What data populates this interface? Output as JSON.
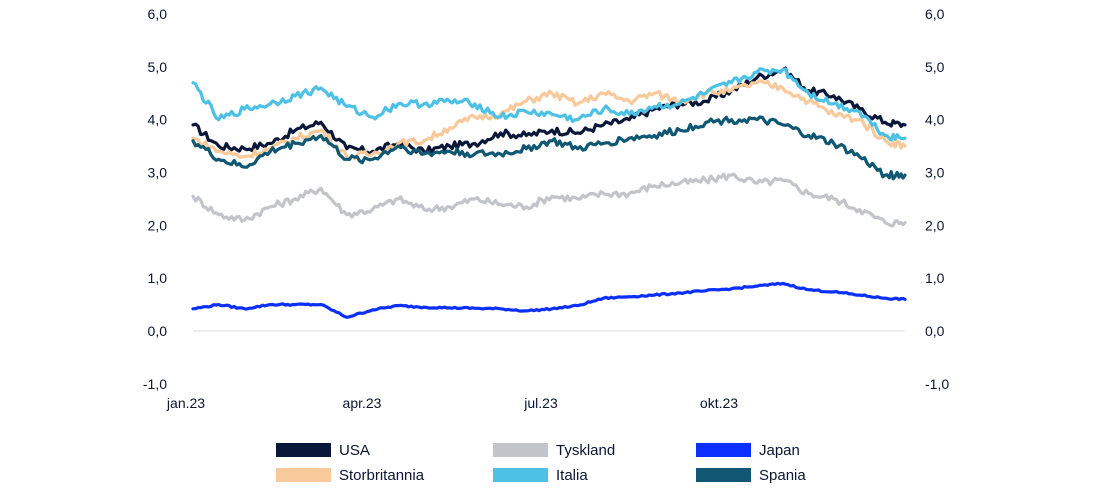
{
  "chart_data": {
    "type": "line",
    "title": "",
    "xlabel": "",
    "ylabel": "",
    "ylim": [
      -1.0,
      6.0
    ],
    "yticks": [
      "6,0",
      "5,0",
      "4,0",
      "3,0",
      "2,0",
      "1,0",
      "0,0",
      "-1,0"
    ],
    "ytick_values": [
      6,
      5,
      4,
      3,
      2,
      1,
      0,
      -1
    ],
    "xtick_labels": [
      "jan.23",
      "apr.23",
      "jul.23",
      "okt.23"
    ],
    "xtick_positions": [
      -0.07,
      3.0,
      6.0,
      9.0
    ],
    "x": [
      0.0,
      0.43,
      0.86,
      1.29,
      1.71,
      2.14,
      2.57,
      3.0,
      3.43,
      3.86,
      4.29,
      4.71,
      5.14,
      5.57,
      6.0,
      6.43,
      6.86,
      7.29,
      7.71,
      8.14,
      8.57,
      9.0,
      9.43,
      9.86,
      10.29,
      10.71,
      11.14,
      11.57,
      11.9
    ],
    "grid": false,
    "legend_position": "bottom",
    "series": [
      {
        "name": "USA",
        "color": "#0a1738",
        "values": [
          3.9,
          3.5,
          3.45,
          3.55,
          3.8,
          3.95,
          3.45,
          3.4,
          3.55,
          3.4,
          3.5,
          3.55,
          3.75,
          3.7,
          3.8,
          3.75,
          3.9,
          4.0,
          4.2,
          4.3,
          4.35,
          4.55,
          4.8,
          4.95,
          4.55,
          4.45,
          4.2,
          3.95,
          3.9
        ]
      },
      {
        "name": "Tyskland",
        "color": "#c2c4c9",
        "values": [
          2.55,
          2.2,
          2.1,
          2.35,
          2.5,
          2.7,
          2.2,
          2.3,
          2.5,
          2.3,
          2.35,
          2.5,
          2.4,
          2.35,
          2.55,
          2.5,
          2.6,
          2.6,
          2.75,
          2.8,
          2.85,
          2.95,
          2.8,
          2.85,
          2.6,
          2.5,
          2.3,
          2.05,
          2.05
        ]
      },
      {
        "name": "Japan",
        "color": "#0a2fff",
        "values": [
          0.42,
          0.5,
          0.42,
          0.5,
          0.5,
          0.5,
          0.26,
          0.4,
          0.48,
          0.45,
          0.44,
          0.43,
          0.42,
          0.38,
          0.42,
          0.48,
          0.62,
          0.65,
          0.68,
          0.72,
          0.76,
          0.8,
          0.85,
          0.9,
          0.78,
          0.74,
          0.68,
          0.62,
          0.6
        ]
      },
      {
        "name": "Storbritannia",
        "color": "#f8c99a",
        "values": [
          3.65,
          3.4,
          3.3,
          3.45,
          3.65,
          3.8,
          3.3,
          3.35,
          3.55,
          3.6,
          3.85,
          4.05,
          4.1,
          4.35,
          4.5,
          4.3,
          4.5,
          4.35,
          4.5,
          4.35,
          4.5,
          4.55,
          4.7,
          4.6,
          4.35,
          4.1,
          4.0,
          3.6,
          3.5
        ]
      },
      {
        "name": "Italia",
        "color": "#4dc1e5",
        "values": [
          4.7,
          4.0,
          4.2,
          4.3,
          4.45,
          4.6,
          4.25,
          4.05,
          4.3,
          4.3,
          4.35,
          4.3,
          4.05,
          4.15,
          4.1,
          4.0,
          4.2,
          4.1,
          4.25,
          4.3,
          4.5,
          4.7,
          4.9,
          4.95,
          4.5,
          4.3,
          4.15,
          3.7,
          3.65
        ]
      },
      {
        "name": "Spania",
        "color": "#0f5773",
        "values": [
          3.6,
          3.25,
          3.1,
          3.4,
          3.55,
          3.7,
          3.25,
          3.25,
          3.5,
          3.35,
          3.4,
          3.35,
          3.35,
          3.45,
          3.6,
          3.45,
          3.55,
          3.65,
          3.7,
          3.8,
          3.95,
          4.0,
          4.0,
          3.9,
          3.7,
          3.55,
          3.3,
          2.95,
          2.95
        ]
      }
    ]
  }
}
